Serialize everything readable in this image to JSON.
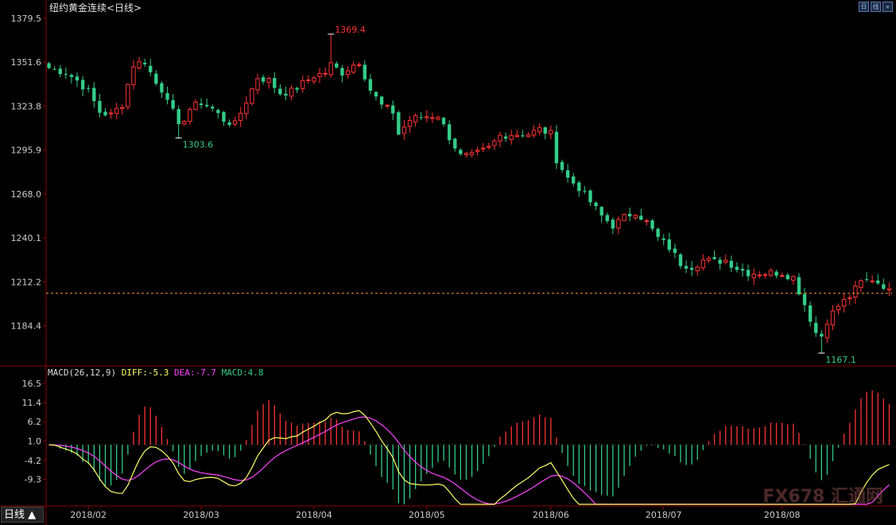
{
  "chart_title": "纽约黄金连续<日线>",
  "corner_buttons": [
    "日",
    "线",
    "✕"
  ],
  "period_tab": "日线 ▲",
  "watermark": "FX678 汇通网",
  "colors": {
    "up": "#ff3333",
    "down": "#33cc88",
    "diff": "#ffff66",
    "dea": "#ff44ff",
    "grid": "#8b0000",
    "axis_text": "#cccccc",
    "ref_line": "#ff9933"
  },
  "chart_data": [
    {
      "type": "candlestick",
      "title": "纽约黄金连续<日线>",
      "ylim": [
        1160,
        1384
      ],
      "y_ticks": [
        1379.5,
        1351.6,
        1323.8,
        1295.9,
        1268.0,
        1240.1,
        1212.2,
        1184.4
      ],
      "x_tick_labels": [
        "2018/02",
        "2018/03",
        "2018/04",
        "2018/05",
        "2018/06",
        "2018/07",
        "2018/08"
      ],
      "x_tick_positions": [
        7,
        27,
        47,
        67,
        89,
        109,
        130
      ],
      "n_bars": 150,
      "annotations": [
        {
          "label": "1369.4",
          "value": 1369.4,
          "index": 50,
          "kind": "high"
        },
        {
          "label": "1303.6",
          "value": 1303.6,
          "index": 23,
          "kind": "low"
        },
        {
          "label": "1167.1",
          "value": 1167.1,
          "index": 137,
          "kind": "low"
        }
      ],
      "reference_line": 1205.0,
      "anchors": [
        [
          0,
          1348
        ],
        [
          3,
          1345
        ],
        [
          5,
          1340
        ],
        [
          7,
          1333
        ],
        [
          9,
          1320
        ],
        [
          11,
          1318
        ],
        [
          13,
          1325
        ],
        [
          15,
          1350
        ],
        [
          17,
          1352
        ],
        [
          19,
          1338
        ],
        [
          21,
          1330
        ],
        [
          23,
          1310
        ],
        [
          25,
          1322
        ],
        [
          27,
          1326
        ],
        [
          29,
          1322
        ],
        [
          31,
          1315
        ],
        [
          33,
          1312
        ],
        [
          35,
          1327
        ],
        [
          37,
          1342
        ],
        [
          39,
          1340
        ],
        [
          41,
          1332
        ],
        [
          43,
          1333
        ],
        [
          45,
          1338
        ],
        [
          47,
          1343
        ],
        [
          49,
          1345
        ],
        [
          50,
          1350
        ],
        [
          52,
          1345
        ],
        [
          54,
          1350
        ],
        [
          55,
          1352
        ],
        [
          57,
          1334
        ],
        [
          59,
          1324
        ],
        [
          61,
          1320
        ],
        [
          62,
          1306
        ],
        [
          64,
          1315
        ],
        [
          66,
          1317
        ],
        [
          69,
          1318
        ],
        [
          71,
          1304
        ],
        [
          73,
          1292
        ],
        [
          75,
          1292
        ],
        [
          78,
          1297
        ],
        [
          80,
          1305
        ],
        [
          82,
          1306
        ],
        [
          85,
          1306
        ],
        [
          87,
          1309
        ],
        [
          89,
          1306
        ],
        [
          90,
          1290
        ],
        [
          92,
          1278
        ],
        [
          94,
          1272
        ],
        [
          96,
          1263
        ],
        [
          98,
          1254
        ],
        [
          100,
          1248
        ],
        [
          102,
          1253
        ],
        [
          104,
          1257
        ],
        [
          106,
          1250
        ],
        [
          108,
          1240
        ],
        [
          110,
          1234
        ],
        [
          112,
          1224
        ],
        [
          114,
          1222
        ],
        [
          116,
          1226
        ],
        [
          118,
          1225
        ],
        [
          120,
          1226
        ],
        [
          122,
          1221
        ],
        [
          124,
          1218
        ],
        [
          126,
          1218
        ],
        [
          128,
          1218
        ],
        [
          130,
          1218
        ],
        [
          132,
          1215
        ],
        [
          134,
          1198
        ],
        [
          136,
          1180
        ],
        [
          137,
          1178
        ],
        [
          138,
          1188
        ],
        [
          140,
          1197
        ],
        [
          142,
          1203
        ],
        [
          144,
          1212
        ],
        [
          146,
          1214
        ],
        [
          148,
          1210
        ],
        [
          149,
          1206
        ]
      ]
    },
    {
      "type": "macd",
      "title": "MACD(26,12,9)",
      "params": [
        26,
        12,
        9
      ],
      "diff": -5.3,
      "dea": -7.7,
      "macd": 4.8,
      "legend_labels": {
        "title": "MACD(26,12,9)",
        "diff": "DIFF:-5.3",
        "dea": "DEA:-7.7",
        "macd": "MACD:4.8"
      },
      "ylim": [
        -16,
        18
      ],
      "y_ticks": [
        16.5,
        11.4,
        6.2,
        1.0,
        -4.2,
        -9.3
      ]
    }
  ]
}
